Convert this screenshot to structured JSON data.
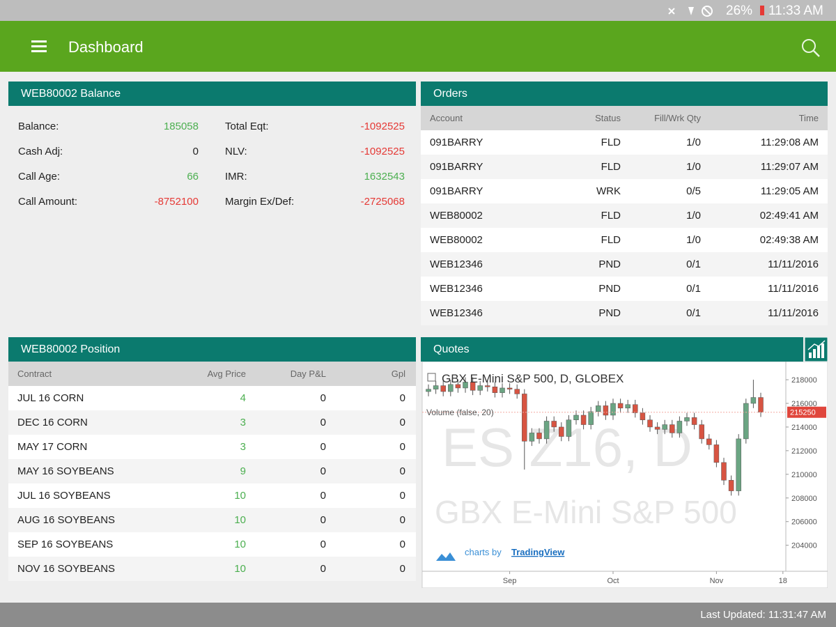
{
  "status_bar": {
    "battery": "26%",
    "time": "11:33 AM"
  },
  "app_bar": {
    "title": "Dashboard"
  },
  "balance": {
    "title": "WEB80002 Balance",
    "left": [
      {
        "label": "Balance:",
        "value": 185058
      },
      {
        "label": "Cash Adj:",
        "value": 0
      },
      {
        "label": "Call Age:",
        "value": 66
      },
      {
        "label": "Call Amount:",
        "value": -8752100
      }
    ],
    "right": [
      {
        "label": "Total Eqt:",
        "value": -1092525
      },
      {
        "label": "NLV:",
        "value": -1092525
      },
      {
        "label": "IMR:",
        "value": 1632543
      },
      {
        "label": "Margin Ex/Def:",
        "value": -2725068
      }
    ]
  },
  "orders": {
    "title": "Orders",
    "columns": [
      "Account",
      "Status",
      "Fill/Wrk Qty",
      "Time"
    ],
    "rows": [
      [
        "091BARRY",
        "FLD",
        "1/0",
        "11:29:08 AM"
      ],
      [
        "091BARRY",
        "FLD",
        "1/0",
        "11:29:07 AM"
      ],
      [
        "091BARRY",
        "WRK",
        "0/5",
        "11:29:05 AM"
      ],
      [
        "WEB80002",
        "FLD",
        "1/0",
        "02:49:41 AM"
      ],
      [
        "WEB80002",
        "FLD",
        "1/0",
        "02:49:38 AM"
      ],
      [
        "WEB12346",
        "PND",
        "0/1",
        "11/11/2016"
      ],
      [
        "WEB12346",
        "PND",
        "0/1",
        "11/11/2016"
      ],
      [
        "WEB12346",
        "PND",
        "0/1",
        "11/11/2016"
      ]
    ]
  },
  "position": {
    "title": "WEB80002 Position",
    "columns": [
      "Contract",
      "Avg Price",
      "Day P&L",
      "Gpl"
    ],
    "rows": [
      [
        "JUL 16 CORN",
        4,
        0,
        0
      ],
      [
        "DEC 16 CORN",
        3,
        0,
        0
      ],
      [
        "MAY 17 CORN",
        3,
        0,
        0
      ],
      [
        "MAY 16 SOYBEANS",
        9,
        0,
        0
      ],
      [
        "JUL 16 SOYBEANS",
        10,
        0,
        0
      ],
      [
        "AUG 16 SOYBEANS",
        10,
        0,
        0
      ],
      [
        "SEP 16 SOYBEANS",
        10,
        0,
        0
      ],
      [
        "NOV 16 SOYBEANS",
        10,
        0,
        0
      ]
    ]
  },
  "quotes": {
    "title": "Quotes",
    "chart_data": {
      "type": "candlestick",
      "title": "GBX E-Mini S&P 500, D, GLOBEX",
      "volume_label": "Volume (false, 20)",
      "watermark": [
        "ES Z16, D",
        "GBX E-Mini S&P 500"
      ],
      "credit": "charts by",
      "credit_link": "TradingView",
      "up_color": "#6ba583",
      "down_color": "#d75442",
      "categories": [
        null,
        null,
        null,
        null,
        null,
        null,
        null,
        null,
        null,
        null,
        null,
        "Sep",
        null,
        null,
        null,
        null,
        null,
        null,
        null,
        null,
        null,
        null,
        null,
        null,
        null,
        "Oct",
        null,
        null,
        null,
        null,
        null,
        null,
        null,
        null,
        null,
        null,
        null,
        null,
        null,
        "Nov",
        null,
        null,
        null,
        null,
        null,
        null,
        null,
        null,
        "18"
      ],
      "open": [
        217000,
        217200,
        217500,
        217000,
        217600,
        217300,
        217800,
        217100,
        217500,
        217400,
        216900,
        217300,
        217200,
        216800,
        212800,
        213500,
        213000,
        214500,
        214000,
        213200,
        214600,
        215000,
        214200,
        215300,
        215800,
        215000,
        216000,
        215600,
        215900,
        215200,
        214600,
        214000,
        213800,
        214200,
        213500,
        214500,
        214800,
        214200,
        213000,
        212500,
        211000,
        209500,
        208600,
        213000,
        216000,
        216500,
        null,
        null,
        null
      ],
      "high": [
        217600,
        217900,
        217900,
        218000,
        218000,
        218200,
        218200,
        217900,
        217900,
        217800,
        217700,
        217700,
        217600,
        217200,
        213900,
        213900,
        214900,
        214900,
        214400,
        215000,
        215400,
        215400,
        215700,
        216200,
        216200,
        216400,
        216400,
        216300,
        216300,
        215600,
        215000,
        214400,
        214600,
        214600,
        214900,
        215200,
        215200,
        214600,
        213400,
        212900,
        211400,
        209900,
        213400,
        216400,
        218000,
        216900,
        null,
        null,
        null
      ],
      "low": [
        216600,
        216800,
        216600,
        216600,
        216900,
        216900,
        216700,
        216700,
        217000,
        216500,
        216500,
        216800,
        216400,
        210400,
        212400,
        212600,
        212600,
        213600,
        212800,
        212800,
        214200,
        213800,
        213800,
        214900,
        214600,
        214600,
        215200,
        215200,
        214800,
        214200,
        213600,
        213400,
        213400,
        213100,
        213100,
        214100,
        213800,
        212600,
        212100,
        210600,
        209100,
        208200,
        208200,
        212600,
        215600,
        214850,
        null,
        null,
        null
      ],
      "close": [
        217200,
        217500,
        217000,
        217600,
        217300,
        217800,
        217100,
        217500,
        217400,
        216900,
        217300,
        217200,
        216800,
        212800,
        213500,
        213000,
        214500,
        214000,
        213200,
        214600,
        215000,
        214200,
        215300,
        215800,
        215000,
        216000,
        215600,
        215900,
        215200,
        214600,
        214000,
        213800,
        214200,
        213500,
        214500,
        214800,
        214200,
        213000,
        212500,
        211000,
        209500,
        208600,
        213000,
        216000,
        216500,
        215250,
        null,
        null,
        null
      ],
      "ylim": [
        201800,
        219300
      ],
      "yticks": [
        204000,
        206000,
        208000,
        210000,
        212000,
        214000,
        216000,
        218000
      ]
    }
  },
  "footer": {
    "text": "Last Updated: 11:31:47 AM"
  }
}
